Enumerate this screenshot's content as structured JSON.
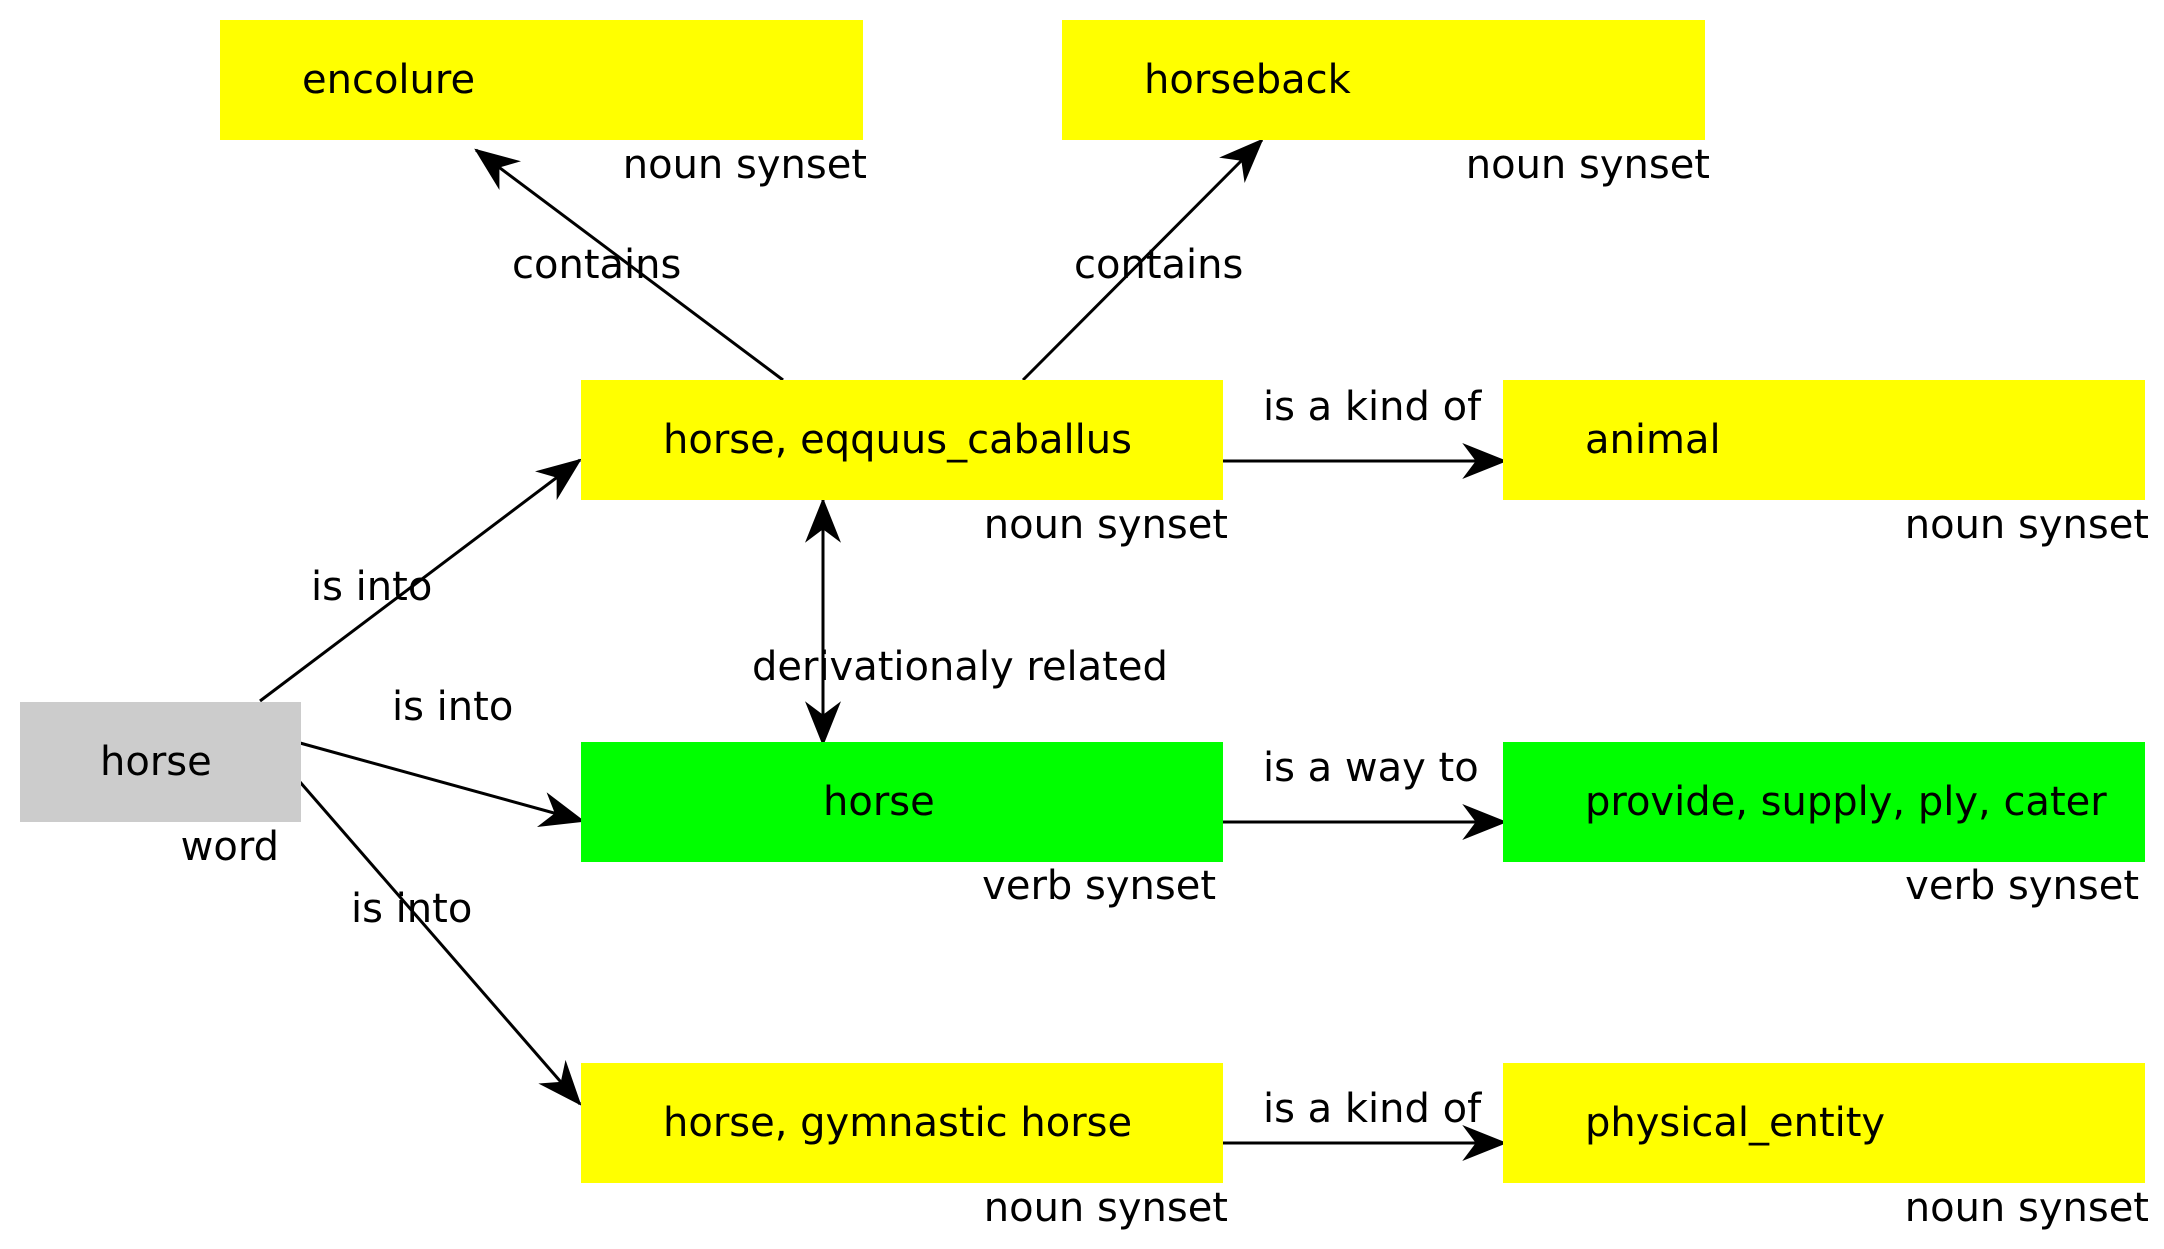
{
  "colors": {
    "noun": "#ffff00",
    "verb": "#00ff00",
    "word": "#cccccc",
    "edge": "#000000"
  },
  "nodes": {
    "encolure": {
      "label": "encolure",
      "type": "noun synset"
    },
    "horseback": {
      "label": "horseback",
      "type": "noun synset"
    },
    "horse_noun": {
      "label": "horse, eqquus_caballus",
      "type": "noun synset"
    },
    "animal": {
      "label": "animal",
      "type": "noun synset"
    },
    "word": {
      "label": "horse",
      "type": "word"
    },
    "horse_verb": {
      "label": "horse",
      "type": "verb synset"
    },
    "provide": {
      "label": "provide, supply, ply, cater",
      "type": "verb synset"
    },
    "gymnastic": {
      "label": "horse, gymnastic horse",
      "type": "noun synset"
    },
    "physical": {
      "label": "physical_entity",
      "type": "noun synset"
    }
  },
  "edges": {
    "contains_1": "contains",
    "contains_2": "contains",
    "kind_of_animal": "is a kind of",
    "is_into_1": "is into",
    "is_into_2": "is into",
    "is_into_3": "is into",
    "derivational": "derivationaly related",
    "way_to": "is a way to",
    "kind_of_physical": "is a kind of"
  }
}
